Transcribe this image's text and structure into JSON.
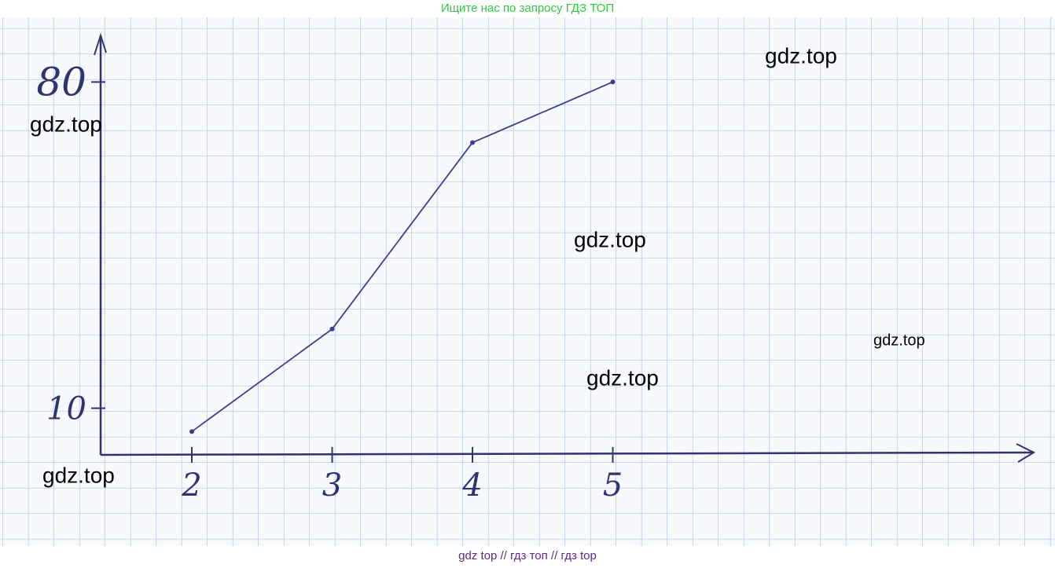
{
  "header": "Ищите нас по запросу ГДЗ ТОП",
  "footer": "gdz top  //  гдз топ  //  гдз top",
  "watermarks": [
    "gdz.top",
    "gdz.top",
    "gdz.top",
    "gdz.top",
    "gdz.top",
    "gdz.top"
  ],
  "chart_data": {
    "type": "line",
    "x": [
      2,
      3,
      4,
      5
    ],
    "series": [
      {
        "color": "#3a3f8f",
        "values": [
          5,
          27,
          67,
          80
        ]
      }
    ],
    "xlim": [
      1.35,
      8
    ],
    "xticks": [
      2,
      3,
      4,
      5
    ],
    "ylim": [
      0,
      90
    ],
    "yticks": [
      10,
      80
    ]
  }
}
